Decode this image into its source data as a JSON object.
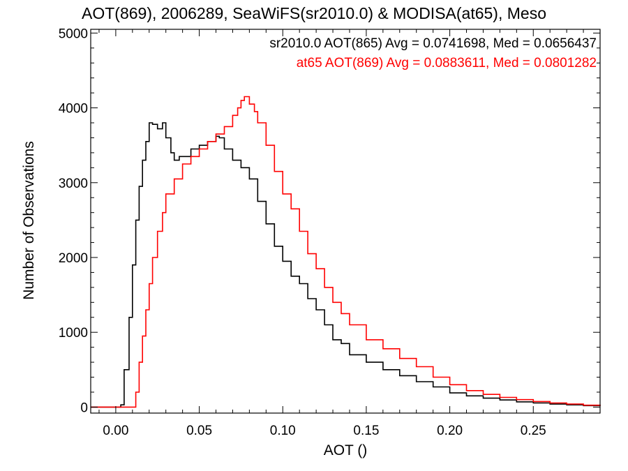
{
  "chart_data": {
    "type": "line",
    "step": true,
    "title": "AOT(869), 2006289, SeaWiFS(sr2010.0) & MODISA(at65), Meso",
    "xlabel": "AOT ()",
    "ylabel": "Number of Observations",
    "xlim": [
      -0.015,
      0.29
    ],
    "ylim": [
      -80,
      5050
    ],
    "xticks": [
      0.0,
      0.05,
      0.1,
      0.15,
      0.2,
      0.25
    ],
    "xtick_labels": [
      "0.00",
      "0.05",
      "0.10",
      "0.15",
      "0.20",
      "0.25"
    ],
    "yticks": [
      0,
      1000,
      2000,
      3000,
      4000,
      5000
    ],
    "ytick_labels": [
      "0",
      "1000",
      "2000",
      "3000",
      "4000",
      "5000"
    ],
    "grid": false,
    "legend_placement": "top-right",
    "series": [
      {
        "name": "sr2010.0",
        "legend": "sr2010.0 AOT(865) Avg = 0.0741698, Med = 0.0656437",
        "color": "#000000",
        "x": [
          -0.015,
          0.0,
          0.003,
          0.005,
          0.008,
          0.01,
          0.012,
          0.014,
          0.016,
          0.018,
          0.02,
          0.022,
          0.025,
          0.028,
          0.03,
          0.033,
          0.035,
          0.038,
          0.04,
          0.045,
          0.05,
          0.055,
          0.06,
          0.062,
          0.065,
          0.07,
          0.075,
          0.08,
          0.085,
          0.09,
          0.095,
          0.1,
          0.105,
          0.11,
          0.115,
          0.12,
          0.125,
          0.13,
          0.135,
          0.14,
          0.15,
          0.16,
          0.17,
          0.18,
          0.19,
          0.2,
          0.21,
          0.22,
          0.23,
          0.24,
          0.25,
          0.26,
          0.27,
          0.28,
          0.29
        ],
        "y": [
          0,
          0,
          30,
          500,
          1200,
          1900,
          2500,
          2950,
          3300,
          3550,
          3800,
          3780,
          3720,
          3800,
          3600,
          3400,
          3300,
          3350,
          3350,
          3450,
          3500,
          3550,
          3620,
          3600,
          3450,
          3300,
          3200,
          3050,
          2750,
          2450,
          2150,
          1950,
          1750,
          1650,
          1450,
          1300,
          1100,
          900,
          850,
          700,
          600,
          500,
          420,
          340,
          270,
          190,
          150,
          120,
          95,
          70,
          55,
          40,
          30,
          20,
          15
        ]
      },
      {
        "name": "at65",
        "legend": "at65 AOT(869) Avg = 0.0883611, Med = 0.0801282",
        "color": "#ff0000",
        "x": [
          -0.015,
          0.0,
          0.01,
          0.012,
          0.014,
          0.016,
          0.018,
          0.02,
          0.022,
          0.025,
          0.028,
          0.03,
          0.035,
          0.04,
          0.045,
          0.05,
          0.055,
          0.06,
          0.065,
          0.07,
          0.073,
          0.075,
          0.077,
          0.08,
          0.083,
          0.085,
          0.09,
          0.095,
          0.1,
          0.105,
          0.11,
          0.115,
          0.12,
          0.125,
          0.13,
          0.135,
          0.14,
          0.15,
          0.16,
          0.17,
          0.18,
          0.19,
          0.2,
          0.21,
          0.22,
          0.23,
          0.24,
          0.25,
          0.26,
          0.27,
          0.28,
          0.29
        ],
        "y": [
          0,
          0,
          0,
          200,
          600,
          950,
          1300,
          1650,
          2000,
          2350,
          2600,
          2850,
          3050,
          3250,
          3350,
          3450,
          3550,
          3650,
          3750,
          3900,
          4000,
          4100,
          4150,
          4050,
          3950,
          3800,
          3500,
          3150,
          2850,
          2650,
          2350,
          2050,
          1850,
          1600,
          1400,
          1250,
          1100,
          900,
          780,
          650,
          540,
          400,
          300,
          220,
          170,
          130,
          100,
          75,
          55,
          40,
          25,
          15
        ]
      }
    ]
  }
}
